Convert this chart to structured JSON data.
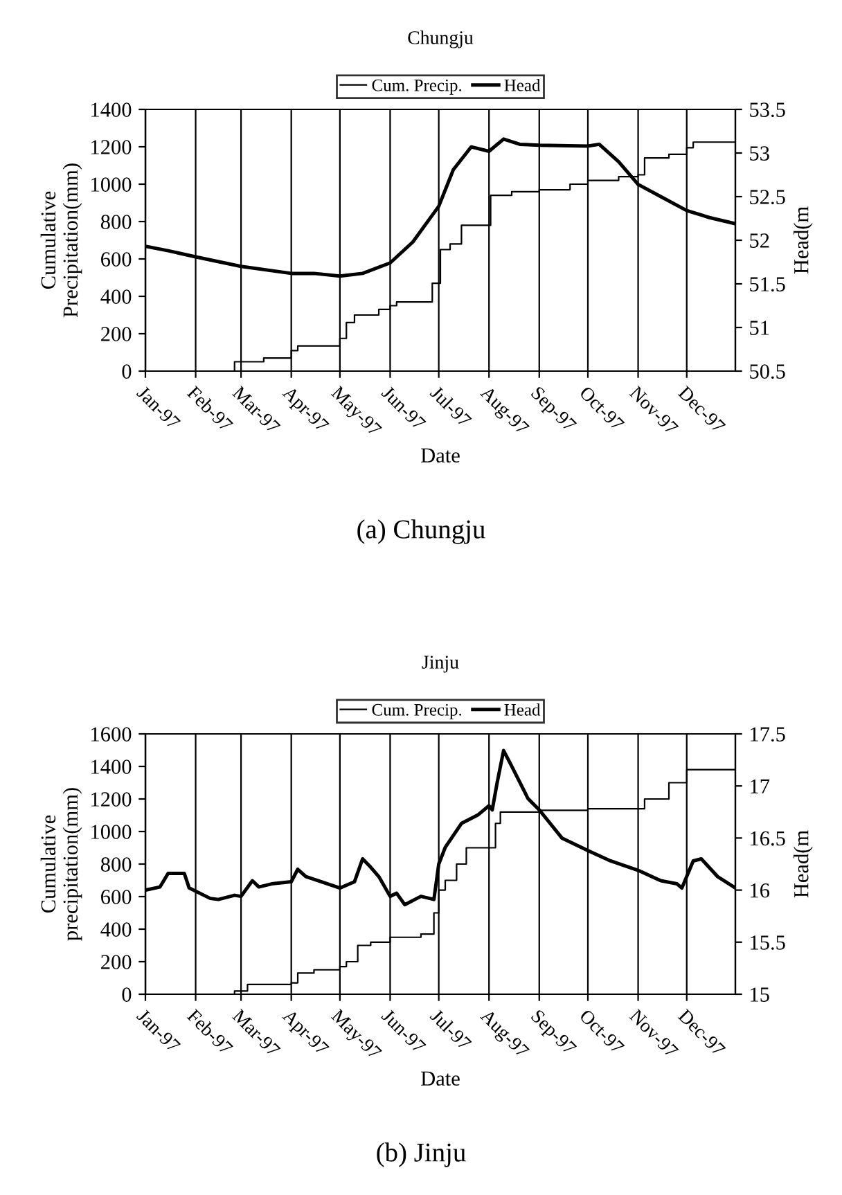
{
  "chart_data": [
    {
      "type": "line",
      "title": "Chungju",
      "xlabel": "Date",
      "ylabel": "Cumulative\nPrecipitation(mm)",
      "y2label": "Head(m",
      "xlim": [
        "1997-01-01",
        "1997-12-31"
      ],
      "xticks": [
        {
          "value": "1997-01-01",
          "label": "Jan-97"
        },
        {
          "value": "1997-02-01",
          "label": "Feb-97"
        },
        {
          "value": "1997-03-01",
          "label": "Mar-97"
        },
        {
          "value": "1997-04-01",
          "label": "Apr-97"
        },
        {
          "value": "1997-05-01",
          "label": "May-97"
        },
        {
          "value": "1997-06-01",
          "label": "Jun-97"
        },
        {
          "value": "1997-07-01",
          "label": "Jul-97"
        },
        {
          "value": "1997-08-01",
          "label": "Aug-97"
        },
        {
          "value": "1997-09-01",
          "label": "Sep-97"
        },
        {
          "value": "1997-10-01",
          "label": "Oct-97"
        },
        {
          "value": "1997-11-01",
          "label": "Nov-97"
        },
        {
          "value": "1997-12-01",
          "label": "Dec-97"
        }
      ],
      "ylim": [
        0,
        1400
      ],
      "yticks": [
        0,
        200,
        400,
        600,
        800,
        1000,
        1200,
        1400
      ],
      "y2lim": [
        50.5,
        53.5
      ],
      "y2ticks": [
        {
          "value": 50.5,
          "label": "50.5"
        },
        51,
        {
          "value": 51.5,
          "label": "51.5"
        },
        52,
        {
          "value": 52.5,
          "label": "52.5"
        },
        53,
        {
          "value": 53.5,
          "label": "53.5"
        }
      ],
      "grid": "x",
      "legend": "top",
      "annotations": [
        "(a) Chungju"
      ],
      "series": [
        {
          "name": "Cum. Precip.",
          "type": "step",
          "color": "#000000",
          "x": [
            "1997-01-01",
            "1997-02-25",
            "1997-03-15",
            "1997-04-01",
            "1997-04-05",
            "1997-05-01",
            "1997-05-05",
            "1997-05-10",
            "1997-05-25",
            "1997-06-01",
            "1997-06-05",
            "1997-06-27",
            "1997-07-02",
            "1997-07-08",
            "1997-07-15",
            "1997-08-02",
            "1997-08-15",
            "1997-09-01",
            "1997-09-20",
            "1997-10-01",
            "1997-10-20",
            "1997-11-01",
            "1997-11-05",
            "1997-11-20",
            "1997-12-01",
            "1997-12-05",
            "1997-12-31"
          ],
          "values": [
            0,
            50,
            70,
            110,
            135,
            175,
            260,
            300,
            330,
            350,
            370,
            470,
            650,
            680,
            780,
            940,
            960,
            970,
            1000,
            1020,
            1040,
            1050,
            1140,
            1160,
            1195,
            1225,
            1225
          ]
        },
        {
          "name": "Head",
          "type": "line",
          "axis": "y2",
          "color": "#000000",
          "x": [
            "1997-01-01",
            "1997-01-15",
            "1997-02-01",
            "1997-03-01",
            "1997-04-01",
            "1997-04-15",
            "1997-05-01",
            "1997-05-15",
            "1997-06-01",
            "1997-06-15",
            "1997-07-01",
            "1997-07-10",
            "1997-07-21",
            "1997-08-01",
            "1997-08-10",
            "1997-08-20",
            "1997-09-01",
            "1997-10-01",
            "1997-10-08",
            "1997-10-20",
            "1997-11-01",
            "1997-11-15",
            "1997-12-01",
            "1997-12-15",
            "1997-12-31"
          ],
          "values": [
            51.93,
            51.88,
            51.81,
            51.7,
            51.62,
            51.62,
            51.59,
            51.62,
            51.74,
            51.98,
            52.39,
            52.81,
            53.07,
            53.02,
            53.16,
            53.1,
            53.09,
            53.08,
            53.1,
            52.9,
            52.64,
            52.5,
            52.34,
            52.26,
            52.19
          ]
        }
      ]
    },
    {
      "type": "line",
      "title": "Jinju",
      "xlabel": "Date",
      "ylabel": "Cumulative\nprecipitation(mm)",
      "y2label": "Head(m",
      "xlim": [
        "1997-01-01",
        "1997-12-31"
      ],
      "xticks": [
        {
          "value": "1997-01-01",
          "label": "Jan-97"
        },
        {
          "value": "1997-02-01",
          "label": "Feb-97"
        },
        {
          "value": "1997-03-01",
          "label": "Mar-97"
        },
        {
          "value": "1997-04-01",
          "label": "Apr-97"
        },
        {
          "value": "1997-05-01",
          "label": "May-97"
        },
        {
          "value": "1997-06-01",
          "label": "Jun-97"
        },
        {
          "value": "1997-07-01",
          "label": "Jul-97"
        },
        {
          "value": "1997-08-01",
          "label": "Aug-97"
        },
        {
          "value": "1997-09-01",
          "label": "Sep-97"
        },
        {
          "value": "1997-10-01",
          "label": "Oct-97"
        },
        {
          "value": "1997-11-01",
          "label": "Nov-97"
        },
        {
          "value": "1997-12-01",
          "label": "Dec-97"
        }
      ],
      "ylim": [
        0,
        1600
      ],
      "yticks": [
        0,
        200,
        400,
        600,
        800,
        1000,
        1200,
        1400,
        1600
      ],
      "y2lim": [
        15,
        17.5
      ],
      "y2ticks": [
        15,
        {
          "value": 15.5,
          "label": "15.5"
        },
        16,
        {
          "value": 16.5,
          "label": "16.5"
        },
        17,
        {
          "value": 17.5,
          "label": "17.5"
        }
      ],
      "grid": "x",
      "legend": "top",
      "annotations": [
        "(b) Jinju"
      ],
      "series": [
        {
          "name": "Cum. Precip.",
          "type": "step",
          "color": "#000000",
          "x": [
            "1997-01-01",
            "1997-02-25",
            "1997-03-05",
            "1997-04-01",
            "1997-04-05",
            "1997-04-15",
            "1997-05-01",
            "1997-05-05",
            "1997-05-12",
            "1997-05-20",
            "1997-06-01",
            "1997-06-20",
            "1997-06-28",
            "1997-07-01",
            "1997-07-05",
            "1997-07-12",
            "1997-07-18",
            "1997-08-05",
            "1997-08-08",
            "1997-09-01",
            "1997-10-01",
            "1997-11-05",
            "1997-11-20",
            "1997-12-01",
            "1997-12-31"
          ],
          "values": [
            0,
            20,
            60,
            70,
            130,
            150,
            170,
            200,
            300,
            320,
            350,
            370,
            500,
            640,
            700,
            800,
            900,
            1050,
            1120,
            1130,
            1140,
            1200,
            1300,
            1380,
            1380
          ]
        },
        {
          "name": "Head",
          "type": "line",
          "axis": "y2",
          "color": "#000000",
          "x": [
            "1997-01-01",
            "1997-01-10",
            "1997-01-15",
            "1997-01-25",
            "1997-01-28",
            "1997-02-10",
            "1997-02-15",
            "1997-02-25",
            "1997-03-01",
            "1997-03-08",
            "1997-03-12",
            "1997-03-20",
            "1997-04-01",
            "1997-04-05",
            "1997-04-10",
            "1997-05-01",
            "1997-05-10",
            "1997-05-15",
            "1997-05-20",
            "1997-05-25",
            "1997-06-01",
            "1997-06-05",
            "1997-06-10",
            "1997-06-20",
            "1997-06-28",
            "1997-07-01",
            "1997-07-05",
            "1997-07-15",
            "1997-07-25",
            "1997-08-01",
            "1997-08-03",
            "1997-08-06",
            "1997-08-10",
            "1997-08-15",
            "1997-08-25",
            "1997-09-01",
            "1997-09-15",
            "1997-10-01",
            "1997-10-15",
            "1997-11-01",
            "1997-11-15",
            "1997-11-25",
            "1997-11-28",
            "1997-12-05",
            "1997-12-10",
            "1997-12-20",
            "1997-12-31"
          ],
          "values": [
            16.0,
            16.03,
            16.16,
            16.16,
            16.02,
            15.92,
            15.91,
            15.95,
            15.94,
            16.09,
            16.03,
            16.06,
            16.08,
            16.2,
            16.13,
            16.02,
            16.08,
            16.3,
            16.22,
            16.13,
            15.94,
            15.97,
            15.86,
            15.94,
            15.91,
            16.25,
            16.41,
            16.64,
            16.72,
            16.81,
            16.77,
            17.03,
            17.34,
            17.19,
            16.88,
            16.77,
            16.5,
            16.38,
            16.28,
            16.19,
            16.09,
            16.06,
            16.02,
            16.28,
            16.3,
            16.13,
            16.02
          ]
        }
      ]
    }
  ]
}
